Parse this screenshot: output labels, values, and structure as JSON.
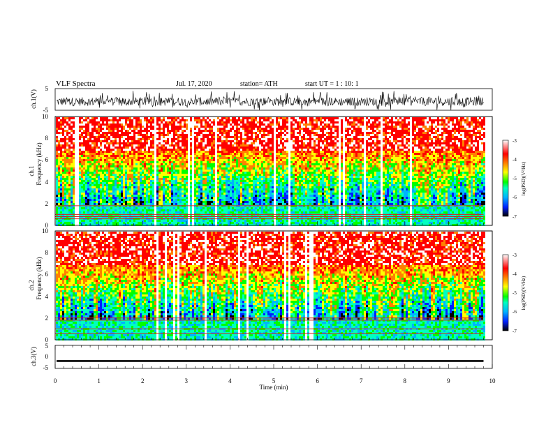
{
  "header": {
    "title": "VLF  Spectra",
    "date": "Jul.  17,  2020",
    "station": "station= ATH",
    "start": "start  UT  =   1  : 10: 1"
  },
  "chart_data": [
    {
      "type": "line",
      "name": "waveform-ch1",
      "ylabel": "ch.1(V)",
      "ylim": [
        -5,
        5
      ],
      "yticks": [
        "5",
        "-5"
      ],
      "xlim": [
        0,
        10
      ],
      "x_extent_min": 9.8,
      "signal_level_v": [
        -3,
        1
      ]
    },
    {
      "type": "heatmap",
      "name": "spectrogram-ch1",
      "ylabel_line1": "ch.1",
      "ylabel_line2": "Frequency  (kHz)",
      "ylim_khz": [
        0,
        10
      ],
      "yticks": [
        "0",
        "2",
        "4",
        "6",
        "8",
        "10"
      ],
      "xlim_min": [
        0,
        10
      ],
      "colorbar": {
        "label": "log(PSD)(V²/Hz)",
        "range": [
          -7,
          -3
        ],
        "ticks": [
          "-3",
          "-4",
          "-5",
          "-6",
          "-7"
        ],
        "colors": [
          "#000000",
          "#0020ff",
          "#00b4ff",
          "#00ffc0",
          "#00ff00",
          "#ffff00",
          "#ff8000",
          "#ff0000",
          "#ffffff"
        ]
      },
      "bands_khz": [
        0.6,
        0.8,
        1.0,
        1.8
      ]
    },
    {
      "type": "heatmap",
      "name": "spectrogram-ch2",
      "ylabel_line1": "ch.2",
      "ylabel_line2": "Frequency  (kHz)",
      "ylim_khz": [
        0,
        10
      ],
      "yticks": [
        "0",
        "2",
        "4",
        "6",
        "8",
        "10"
      ],
      "xlim_min": [
        0,
        10
      ],
      "colorbar": {
        "label": "log(PSD)(V²/Hz)",
        "range": [
          -7,
          -3
        ],
        "ticks": [
          "-3",
          "-4",
          "-5",
          "-6",
          "-7"
        ],
        "colors": [
          "#000000",
          "#0020ff",
          "#00b4ff",
          "#00ffc0",
          "#00ff00",
          "#ffff00",
          "#ff8000",
          "#ff0000",
          "#ffffff"
        ]
      },
      "bands_khz": [
        0.6,
        1.0,
        1.8,
        2.0
      ]
    },
    {
      "type": "line",
      "name": "waveform-ch3",
      "ylabel": "ch.3(V)",
      "ylim": [
        -5,
        5
      ],
      "yticks": [
        "5",
        "0",
        "-5"
      ],
      "xlim": [
        0,
        10
      ],
      "x_extent_min": 9.8,
      "signal_level_v": -1.8
    }
  ],
  "xaxis": {
    "label": "Time  (min)",
    "ticks": [
      "0",
      "1",
      "2",
      "3",
      "4",
      "5",
      "6",
      "7",
      "8",
      "9",
      "10"
    ]
  }
}
